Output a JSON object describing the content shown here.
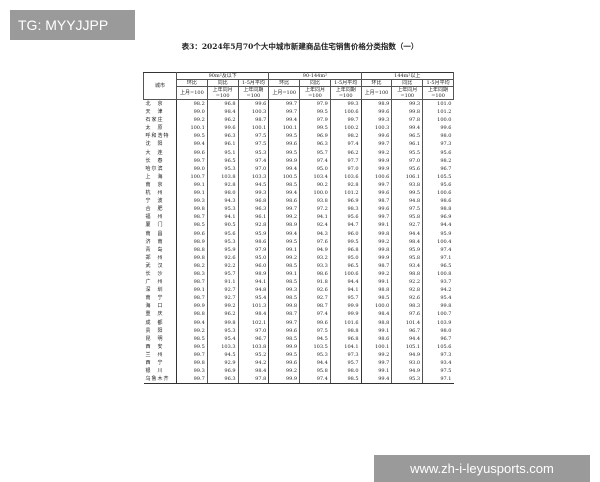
{
  "watermark_top": "TG: MYYJJPP",
  "watermark_bottom": "www.zh-i-leyusports.com",
  "title": "表3：2024年5月70个大中城市新建商品住宅销售价格分类指数（一）",
  "header": {
    "city": "城市",
    "groups": [
      "90m²及以下",
      "90-144m²",
      "144m²以上"
    ],
    "subcols": [
      "环比",
      "同比",
      "1-5月平均"
    ],
    "bases": [
      "上月=100",
      "上年同月=100",
      "上年同期=100"
    ]
  },
  "rows": [
    [
      "北　京",
      98.2,
      96.8,
      99.6,
      99.7,
      97.9,
      99.3,
      98.9,
      99.3,
      101.0
    ],
    [
      "天　津",
      99.0,
      98.4,
      100.3,
      99.7,
      99.5,
      100.6,
      99.6,
      99.8,
      101.2
    ],
    [
      "石家庄",
      99.2,
      96.2,
      98.7,
      99.4,
      97.9,
      99.7,
      99.3,
      97.8,
      100.0
    ],
    [
      "太　原",
      100.1,
      99.6,
      100.1,
      100.1,
      99.5,
      100.2,
      100.3,
      99.4,
      99.6
    ],
    [
      "呼和浩特",
      99.5,
      96.3,
      97.5,
      99.5,
      96.9,
      98.2,
      99.6,
      96.5,
      98.0
    ],
    [
      "沈　阳",
      99.4,
      96.1,
      97.5,
      99.6,
      96.3,
      97.4,
      99.7,
      96.1,
      97.3
    ],
    [
      "大　连",
      99.6,
      95.1,
      95.3,
      99.5,
      95.7,
      96.2,
      99.2,
      95.5,
      95.6
    ],
    [
      "长　春",
      99.7,
      96.5,
      97.4,
      99.9,
      97.4,
      97.7,
      99.9,
      97.0,
      98.2
    ],
    [
      "哈尔滨",
      99.0,
      95.3,
      97.0,
      99.4,
      95.0,
      97.0,
      99.9,
      95.6,
      96.7
    ],
    [
      "上　海",
      100.7,
      103.8,
      103.3,
      100.5,
      103.4,
      103.6,
      100.6,
      106.1,
      105.5
    ],
    [
      "南　京",
      99.1,
      92.8,
      94.5,
      98.5,
      90.2,
      92.8,
      99.7,
      93.8,
      95.6
    ],
    [
      "杭　州",
      99.1,
      98.0,
      99.3,
      99.4,
      100.0,
      101.2,
      99.6,
      99.5,
      100.6
    ],
    [
      "宁　波",
      99.3,
      94.3,
      96.8,
      98.6,
      93.8,
      96.9,
      98.7,
      94.8,
      98.6
    ],
    [
      "合　肥",
      99.8,
      95.3,
      96.3,
      99.7,
      97.2,
      98.3,
      99.6,
      97.5,
      98.8
    ],
    [
      "福　州",
      98.7,
      94.1,
      96.1,
      99.2,
      94.1,
      95.6,
      99.7,
      95.8,
      96.9
    ],
    [
      "厦　门",
      98.5,
      90.5,
      92.8,
      98.9,
      92.4,
      94.7,
      99.1,
      92.7,
      94.4
    ],
    [
      "南　昌",
      99.6,
      95.6,
      95.9,
      99.4,
      94.3,
      96.0,
      99.8,
      94.4,
      95.9
    ],
    [
      "济　南",
      98.9,
      95.3,
      98.6,
      99.5,
      97.6,
      99.5,
      99.2,
      98.4,
      100.4
    ],
    [
      "青　岛",
      98.8,
      95.9,
      97.9,
      99.1,
      94.9,
      96.8,
      99.8,
      95.9,
      97.4
    ],
    [
      "郑　州",
      99.8,
      92.6,
      95.0,
      99.2,
      93.2,
      95.0,
      99.9,
      95.8,
      97.1
    ],
    [
      "武　汉",
      98.2,
      92.2,
      96.0,
      98.5,
      93.3,
      96.5,
      98.7,
      93.4,
      96.5
    ],
    [
      "长　沙",
      98.3,
      95.7,
      98.9,
      99.1,
      98.6,
      100.6,
      99.2,
      98.8,
      100.8
    ],
    [
      "广　州",
      98.7,
      91.1,
      94.1,
      98.5,
      91.8,
      94.4,
      99.1,
      92.2,
      93.7
    ],
    [
      "深　圳",
      99.1,
      92.7,
      94.8,
      99.3,
      92.6,
      94.1,
      98.8,
      92.8,
      94.2
    ],
    [
      "南　宁",
      98.7,
      92.7,
      95.4,
      98.5,
      92.7,
      95.7,
      98.5,
      92.6,
      95.4
    ],
    [
      "海　口",
      99.9,
      99.2,
      101.3,
      99.8,
      98.7,
      99.9,
      100.0,
      98.3,
      99.8
    ],
    [
      "重　庆",
      98.8,
      96.2,
      98.4,
      98.7,
      97.4,
      99.9,
      98.4,
      97.6,
      100.7
    ],
    [
      "成　都",
      99.4,
      99.8,
      102.1,
      99.7,
      99.6,
      101.6,
      98.8,
      101.4,
      103.9
    ],
    [
      "贵　阳",
      99.2,
      95.3,
      97.0,
      99.6,
      97.5,
      98.8,
      99.1,
      96.7,
      98.0
    ],
    [
      "昆　明",
      98.5,
      95.4,
      96.7,
      98.5,
      94.5,
      96.8,
      98.6,
      94.4,
      96.7
    ],
    [
      "西　安",
      99.5,
      103.3,
      103.8,
      99.9,
      103.5,
      104.1,
      100.1,
      105.1,
      105.6
    ],
    [
      "兰　州",
      99.7,
      94.5,
      95.2,
      99.5,
      95.3,
      97.3,
      99.2,
      94.9,
      97.3
    ],
    [
      "西　宁",
      99.8,
      92.9,
      94.2,
      99.6,
      94.4,
      95.7,
      99.7,
      93.0,
      93.4
    ],
    [
      "银　川",
      99.3,
      96.9,
      98.4,
      99.2,
      95.8,
      98.0,
      99.1,
      94.9,
      97.5
    ],
    [
      "乌鲁木齐",
      99.7,
      96.3,
      97.8,
      99.9,
      97.4,
      98.5,
      99.4,
      95.3,
      97.1
    ]
  ]
}
